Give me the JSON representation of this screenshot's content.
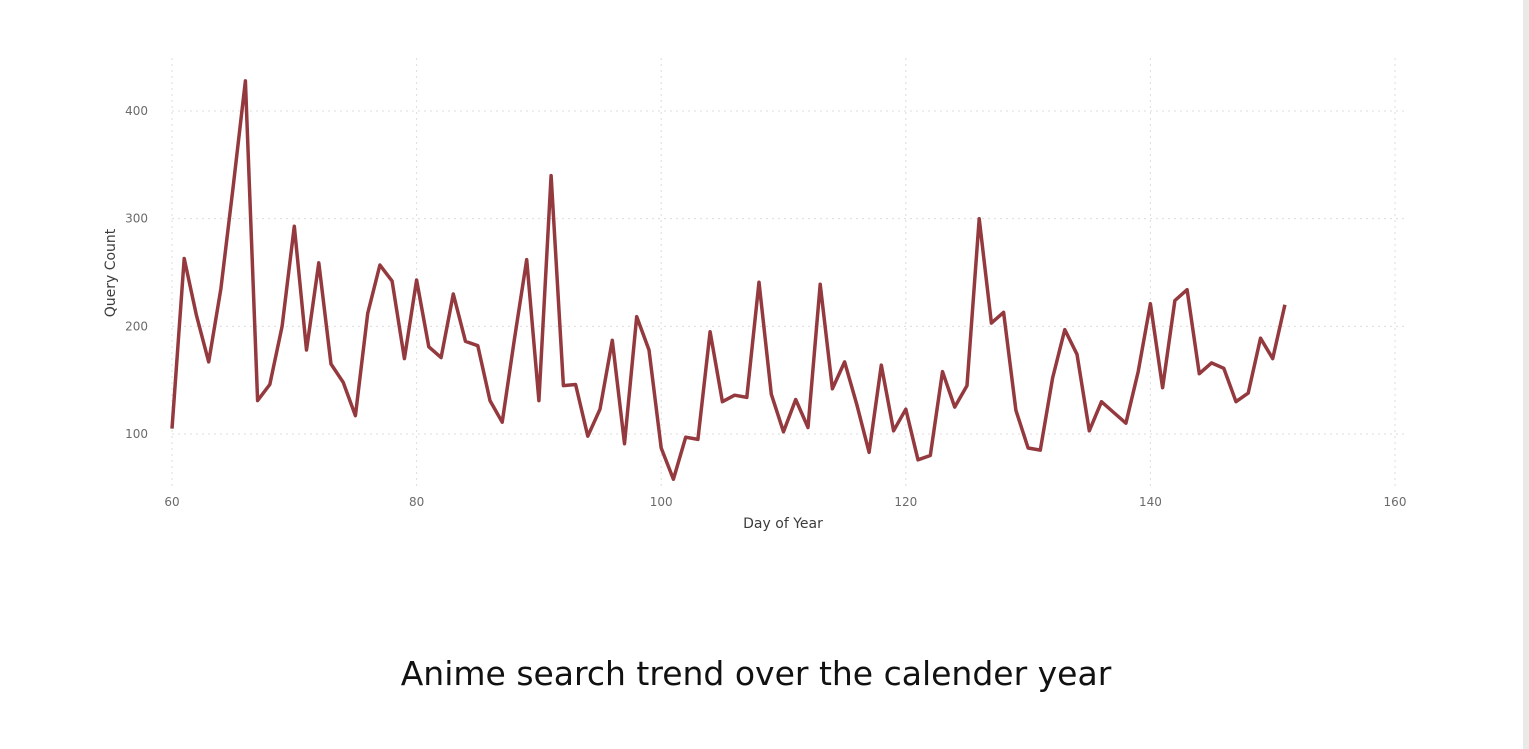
{
  "caption": "Anime search trend over the calender year",
  "chart_data": {
    "type": "line",
    "title": "",
    "xlabel": "Day of Year",
    "ylabel": "Query Count",
    "xlim": [
      60,
      160
    ],
    "ylim": [
      50,
      450
    ],
    "x_ticks": [
      60,
      80,
      100,
      120,
      140,
      160
    ],
    "y_ticks": [
      100,
      200,
      300,
      400
    ],
    "grid": true,
    "line_color": "#943a3f",
    "grid_color": "#dcdcdc",
    "series": [
      {
        "x": [
          60,
          61,
          62,
          63,
          64,
          65,
          66,
          67,
          68,
          69,
          70,
          71,
          72,
          73,
          74,
          75,
          76,
          77,
          78,
          79,
          80,
          81,
          82,
          83,
          84,
          85,
          86,
          87,
          88,
          89,
          90,
          91,
          92,
          93,
          94,
          95,
          96,
          97,
          98,
          99,
          100,
          101,
          102,
          103,
          104,
          105,
          106,
          107,
          108,
          109,
          110,
          111,
          112,
          113,
          114,
          115,
          116,
          117,
          118,
          119,
          120,
          121,
          122,
          123,
          124,
          125,
          126,
          127,
          128,
          129,
          130,
          131,
          132,
          133,
          134,
          135,
          136,
          137,
          138,
          139,
          140,
          141,
          142,
          143,
          144,
          145,
          146,
          147,
          148,
          149,
          150,
          151
        ],
        "values": [
          105,
          263,
          210,
          167,
          235,
          330,
          428,
          131,
          146,
          200,
          293,
          178,
          259,
          165,
          148,
          117,
          212,
          257,
          242,
          170,
          243,
          181,
          171,
          230,
          186,
          182,
          131,
          111,
          188,
          262,
          131,
          340,
          145,
          146,
          98,
          123,
          187,
          91,
          209,
          178,
          87,
          58,
          97,
          95,
          195,
          130,
          136,
          134,
          241,
          137,
          102,
          132,
          106,
          239,
          142,
          167,
          127,
          83,
          164,
          103,
          123,
          76,
          80,
          158,
          125,
          145,
          300,
          203,
          213,
          122,
          87,
          85,
          152,
          197,
          174,
          103,
          130,
          120,
          110,
          158,
          221,
          143,
          224,
          234,
          156,
          166,
          161,
          130,
          138,
          189,
          170,
          220
        ]
      }
    ]
  }
}
